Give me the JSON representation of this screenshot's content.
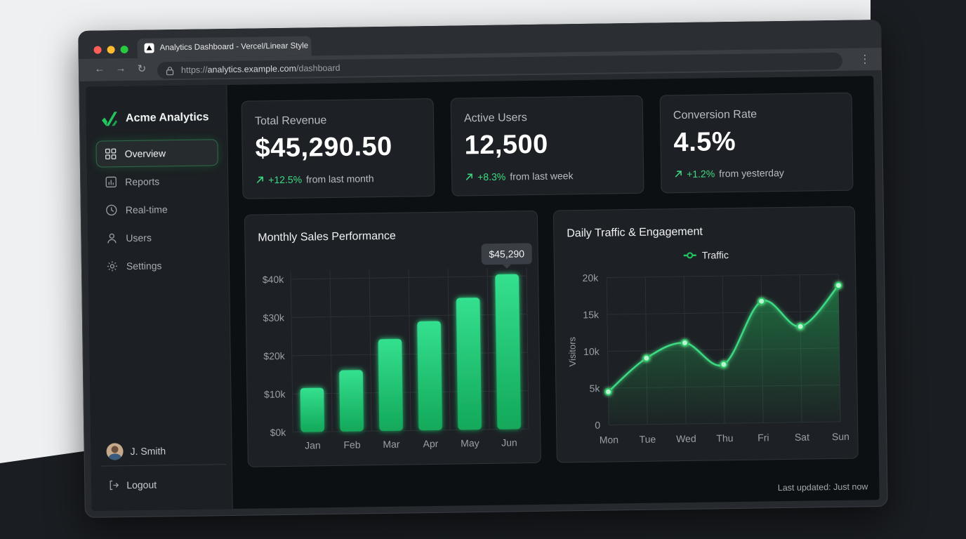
{
  "browser": {
    "tab_title": "Analytics Dashboard - Vercel/Linear Style",
    "url_scheme": "https://",
    "url_host": "analytics.example.com",
    "url_path": "/dashboard",
    "traffic_light_colors": [
      "#ff5f57",
      "#febc2e",
      "#28c840"
    ]
  },
  "sidebar": {
    "brand": "Acme Analytics",
    "items": [
      {
        "label": "Overview",
        "icon": "grid-icon",
        "active": true
      },
      {
        "label": "Reports",
        "icon": "bar-chart-icon",
        "active": false
      },
      {
        "label": "Real-time",
        "icon": "clock-icon",
        "active": false
      },
      {
        "label": "Users",
        "icon": "user-icon",
        "active": false
      },
      {
        "label": "Settings",
        "icon": "gear-icon",
        "active": false
      }
    ],
    "user_name": "J. Smith",
    "logout_label": "Logout"
  },
  "stats": [
    {
      "label": "Total Revenue",
      "value": "$45,290.50",
      "change": "+12.5%",
      "period": "from last month"
    },
    {
      "label": "Active Users",
      "value": "12,500",
      "change": "+8.3%",
      "period": "from last week"
    },
    {
      "label": "Conversion Rate",
      "value": "4.5%",
      "change": "+1.2%",
      "period": "from yesterday"
    }
  ],
  "accent_color": "#22c55e",
  "chart_data": [
    {
      "type": "bar",
      "title": "Monthly Sales Performance",
      "categories": [
        "Jan",
        "Feb",
        "Mar",
        "Apr",
        "May",
        "Jun"
      ],
      "values": [
        11500,
        16000,
        24000,
        28500,
        34500,
        40500
      ],
      "ylim": [
        0,
        40000
      ],
      "yticks": [
        "$0k",
        "$10k",
        "$20k",
        "$30k",
        "$40k"
      ],
      "tooltip": "$45,290",
      "grid": true
    },
    {
      "type": "area",
      "title": "Daily Traffic & Engagement",
      "categories": [
        "Mon",
        "Tue",
        "Wed",
        "Thu",
        "Fri",
        "Sat",
        "Sun"
      ],
      "series": [
        {
          "name": "Traffic",
          "values": [
            4500,
            9000,
            11000,
            8000,
            16500,
            13000,
            18500
          ]
        }
      ],
      "ylabel": "Visitors",
      "ylim": [
        0,
        20000
      ],
      "yticks": [
        "0",
        "5k",
        "10k",
        "15k",
        "20k"
      ],
      "legend": "top-center",
      "grid": true
    }
  ],
  "footer": {
    "last_updated": "Last updated: Just now"
  }
}
